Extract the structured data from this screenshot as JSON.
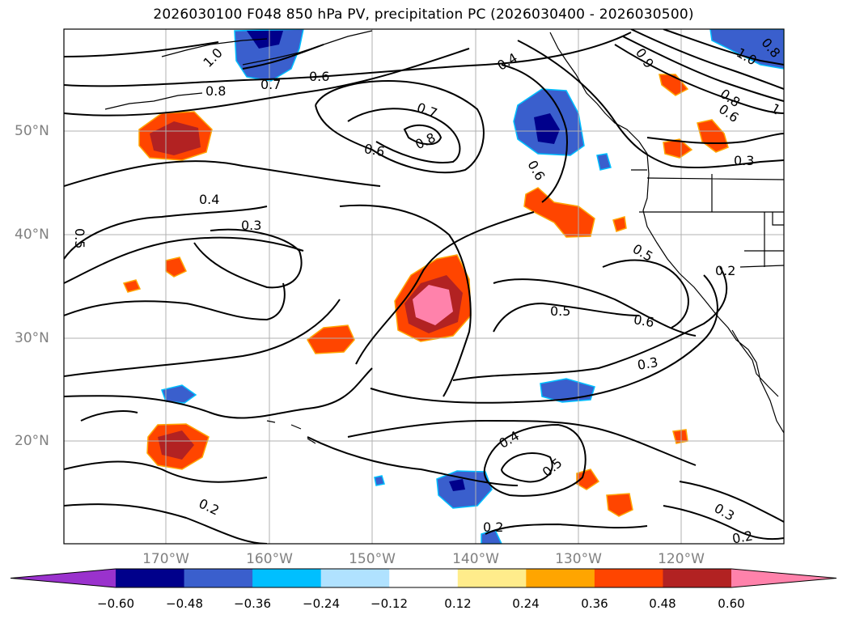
{
  "title": "2026030100 F048 850 hPa PV, precipitation PC (2026030400 - 2026030500)",
  "lat_ticks": [
    "50°N",
    "40°N",
    "30°N",
    "20°N"
  ],
  "lon_ticks": [
    "170°W",
    "160°W",
    "150°W",
    "140°W",
    "130°W",
    "120°W"
  ],
  "colorbar": {
    "ticks": [
      "−0.60",
      "−0.48",
      "−0.36",
      "−0.24",
      "−0.12",
      "0.12",
      "0.24",
      "0.36",
      "0.48",
      "0.60"
    ],
    "colors": [
      "#9a32cd",
      "#00008b",
      "#3a5fcd",
      "#00bfff",
      "#b0e2ff",
      "#ffffff",
      "#ffec8b",
      "#ffa500",
      "#ff4500",
      "#b22222",
      "#ff82ab"
    ]
  },
  "contour_labels": [
    "1.0",
    "0.7",
    "0.8",
    "0.6",
    "0.7",
    "0.8",
    "0.6",
    "0.4",
    "0.3",
    "0.5",
    "0.6",
    "0.5",
    "0.2",
    "0.5",
    "0.6",
    "0.3",
    "0.4",
    "0.5",
    "0.2",
    "0.2",
    "0.3",
    "0.2",
    "0.8",
    "0.6",
    "0.3",
    "0.9",
    "0.8",
    "1.0",
    "1",
    "0.4"
  ],
  "precip_patches": [
    {
      "name": "precip-positive",
      "level": 0.48
    },
    {
      "name": "precip-positive",
      "level": 0.36
    },
    {
      "name": "precip-positive",
      "level": 0.6
    },
    {
      "name": "precip-negative",
      "level": -0.48
    },
    {
      "name": "precip-negative",
      "level": -0.36
    }
  ]
}
